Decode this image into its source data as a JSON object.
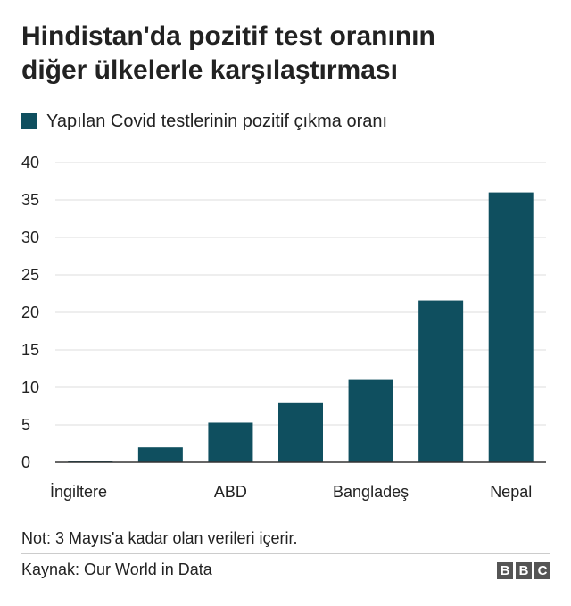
{
  "header": {
    "title_line1": "Hindistan'da pozitif test oranının",
    "title_line2": "diğer ülkelerle karşılaştırması"
  },
  "legend": {
    "label": "Yapılan Covid testlerinin pozitif çıkma oranı",
    "color": "#0f4f5f"
  },
  "chart_data": {
    "type": "bar",
    "categories": [
      "İngiltere",
      "",
      "ABD",
      "",
      "Bangladeş",
      "",
      "Nepal"
    ],
    "series": [
      {
        "name": "Yapılan Covid testlerinin pozitif çıkma oranı",
        "values": [
          0.2,
          2.0,
          5.3,
          8.0,
          11.0,
          21.6,
          36.0
        ],
        "color": "#0f4f5f"
      }
    ],
    "title": "Hindistan'da pozitif test oranının diğer ülkelerle karşılaştırması",
    "xlabel": "",
    "ylabel": "",
    "ylim": [
      0,
      40
    ],
    "yticks": [
      0,
      5,
      10,
      15,
      20,
      25,
      30,
      35,
      40
    ],
    "grid": true,
    "legend_position": "top-left",
    "grid_color": "#dddddd"
  },
  "footer": {
    "note": "Not: 3 Mayıs'a kadar olan verileri içerir.",
    "source": "Kaynak: Our World in Data",
    "logo_letters": [
      "B",
      "B",
      "C"
    ]
  }
}
